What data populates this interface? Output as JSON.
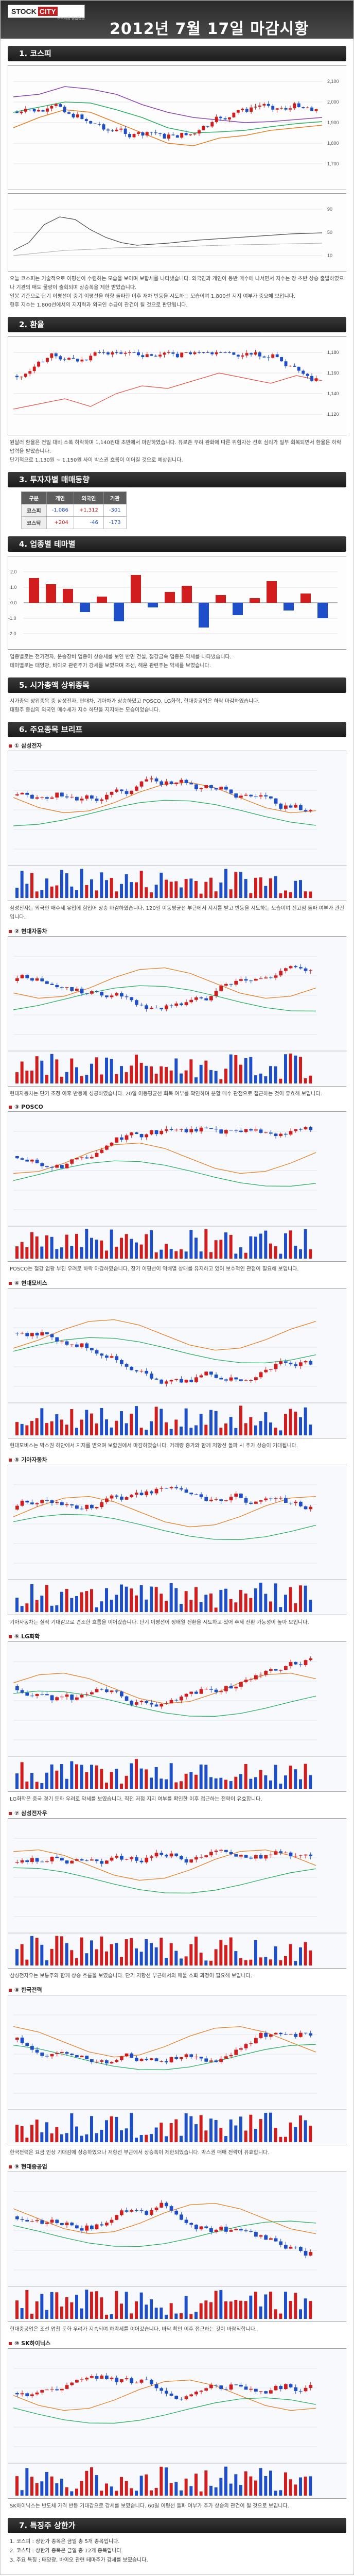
{
  "header": {
    "logo_word_1": "STOCK",
    "logo_word_2": "CITY",
    "logo_tagline": "주식시장 종합정보",
    "title": "2012년 7월 17일 마감시황"
  },
  "sections": {
    "kospi": "1. 코스피",
    "fx": "2. 환율",
    "investors": "3. 투자자별 매매동향",
    "sectors": "4. 업종별 테마별",
    "market_cap": "5. 시가총액 상위종목",
    "briefing": "6. 주요종목 브리프",
    "limit_up": "7. 특징주 상한가"
  },
  "kospi": {
    "paragraph_1": "오늘 코스피는 기술적으로 이평선이 수렴하는 모습을 보이며 보합세를 나타냈습니다. 외국인과 개인이 동반 매수에 나서면서 지수는 장 초반 상승 출발하였으나 기관의 매도 물량이 출회되며 상승폭을 제한 받았습니다.",
    "paragraph_2": "일봉 기준으로 단기 이평선이 중기 이평선을 하향 돌파한 이후 재차 반등을 시도하는 모습이며 1,800선 지지 여부가 중요해 보입니다.",
    "paragraph_3": "향후 지수는 1,800선에서의 지지력과 외국인 수급이 관건이 될 것으로 판단됩니다."
  },
  "fx": {
    "paragraph_1": "원달러 환율은 전일 대비 소폭 하락하며 1,140원대 초반에서 마감하였습니다. 유로존 우려 완화에 따른 위험자산 선호 심리가 일부 회복되면서 환율은 하락 압력을 받았습니다.",
    "paragraph_2": "단기적으로 1,130원 ~ 1,150원 사이 박스권 흐름이 이어질 것으로 예상됩니다."
  },
  "investors": {
    "headers": [
      "구분",
      "개인",
      "외국인",
      "기관"
    ],
    "rows": [
      {
        "label": "코스피",
        "values": [
          "-1,086",
          "+1,312",
          "-301"
        ]
      },
      {
        "label": "코스닥",
        "values": [
          "+204",
          "-46",
          "-173"
        ]
      }
    ]
  },
  "sectors": {
    "paragraph_1": "업종별로는 전기전자, 운송장비 업종이 상승세를 보인 반면 건설, 철강금속 업종은 약세를 나타냈습니다.",
    "paragraph_2": "테마별로는 태양광, 바이오 관련주가 강세를 보였으며 조선, 해운 관련주는 약세를 보였습니다."
  },
  "market_cap": {
    "paragraph_1": "시가총액 상위종목 중 삼성전자, 현대차, 기아차가 상승하였고 POSCO, LG화학, 현대중공업은 하락 마감하였습니다.",
    "paragraph_2": "대형주 중심의 외국인 매수세가 지수 하단을 지지하는 모습이었습니다."
  },
  "stocks": [
    {
      "name": "① 삼성전자",
      "comment": "삼성전자는 외국인 매수세 유입에 힘입어 상승 마감하였습니다. 120일 이동평균선 부근에서 지지를 받고 반등을 시도하는 모습이며 전고점 돌파 여부가 관건입니다."
    },
    {
      "name": "② 현대자동차",
      "comment": "현대자동차는 단기 조정 이후 반등에 성공하였습니다. 20일 이동평균선 회복 여부를 확인하며 분할 매수 관점으로 접근하는 것이 유효해 보입니다."
    },
    {
      "name": "③ POSCO",
      "comment": "POSCO는 철강 업황 부진 우려로 하락 마감하였습니다. 장기 이평선이 역배열 상태를 유지하고 있어 보수적인 관점이 필요해 보입니다."
    },
    {
      "name": "④ 현대모비스",
      "comment": "현대모비스는 박스권 하단에서 지지를 받으며 보합권에서 마감하였습니다. 거래량 증가와 함께 저항선 돌파 시 추가 상승이 기대됩니다."
    },
    {
      "name": "⑤ 기아자동차",
      "comment": "기아자동차는 실적 기대감으로 견조한 흐름을 이어갔습니다. 단기 이평선이 정배열 전환을 시도하고 있어 추세 전환 가능성이 높아 보입니다."
    },
    {
      "name": "⑥ LG화학",
      "comment": "LG화학은 중국 경기 둔화 우려로 약세를 보였습니다. 직전 저점 지지 여부를 확인한 이후 접근하는 전략이 유효합니다."
    },
    {
      "name": "⑦ 삼성전자우",
      "comment": "삼성전자우는 보통주와 함께 상승 흐름을 보였습니다. 단기 저항선 부근에서의 매물 소화 과정이 필요해 보입니다."
    },
    {
      "name": "⑧ 한국전력",
      "comment": "한국전력은 요금 인상 기대감에 상승하였으나 저항선 부근에서 상승폭이 제한되었습니다. 박스권 매매 전략이 유효합니다."
    },
    {
      "name": "⑨ 현대중공업",
      "comment": "현대중공업은 조선 업황 둔화 우려가 지속되며 하락세를 이어갔습니다. 바닥 확인 이후 접근하는 것이 바람직합니다."
    },
    {
      "name": "⑩ SK하이닉스",
      "comment": "SK하이닉스는 반도체 가격 반등 기대감으로 강세를 보였습니다. 60일 이평선 돌파 여부가 추가 상승의 관건이 될 것으로 보입니다."
    }
  ],
  "limit_up": {
    "items": [
      "1. 코스피 : 상한가 종목은 금일 총 5개 종목입니다.",
      "2. 코스닥 : 상한가 종목은 금일 총 12개 종목입니다.",
      "3. 주요 특징 : 태양광, 바이오 관련 테마주가 강세를 보였습니다."
    ]
  },
  "colors": {
    "up": "#d11d1d",
    "down": "#1e4fc9",
    "band": "#2a2a2a"
  }
}
